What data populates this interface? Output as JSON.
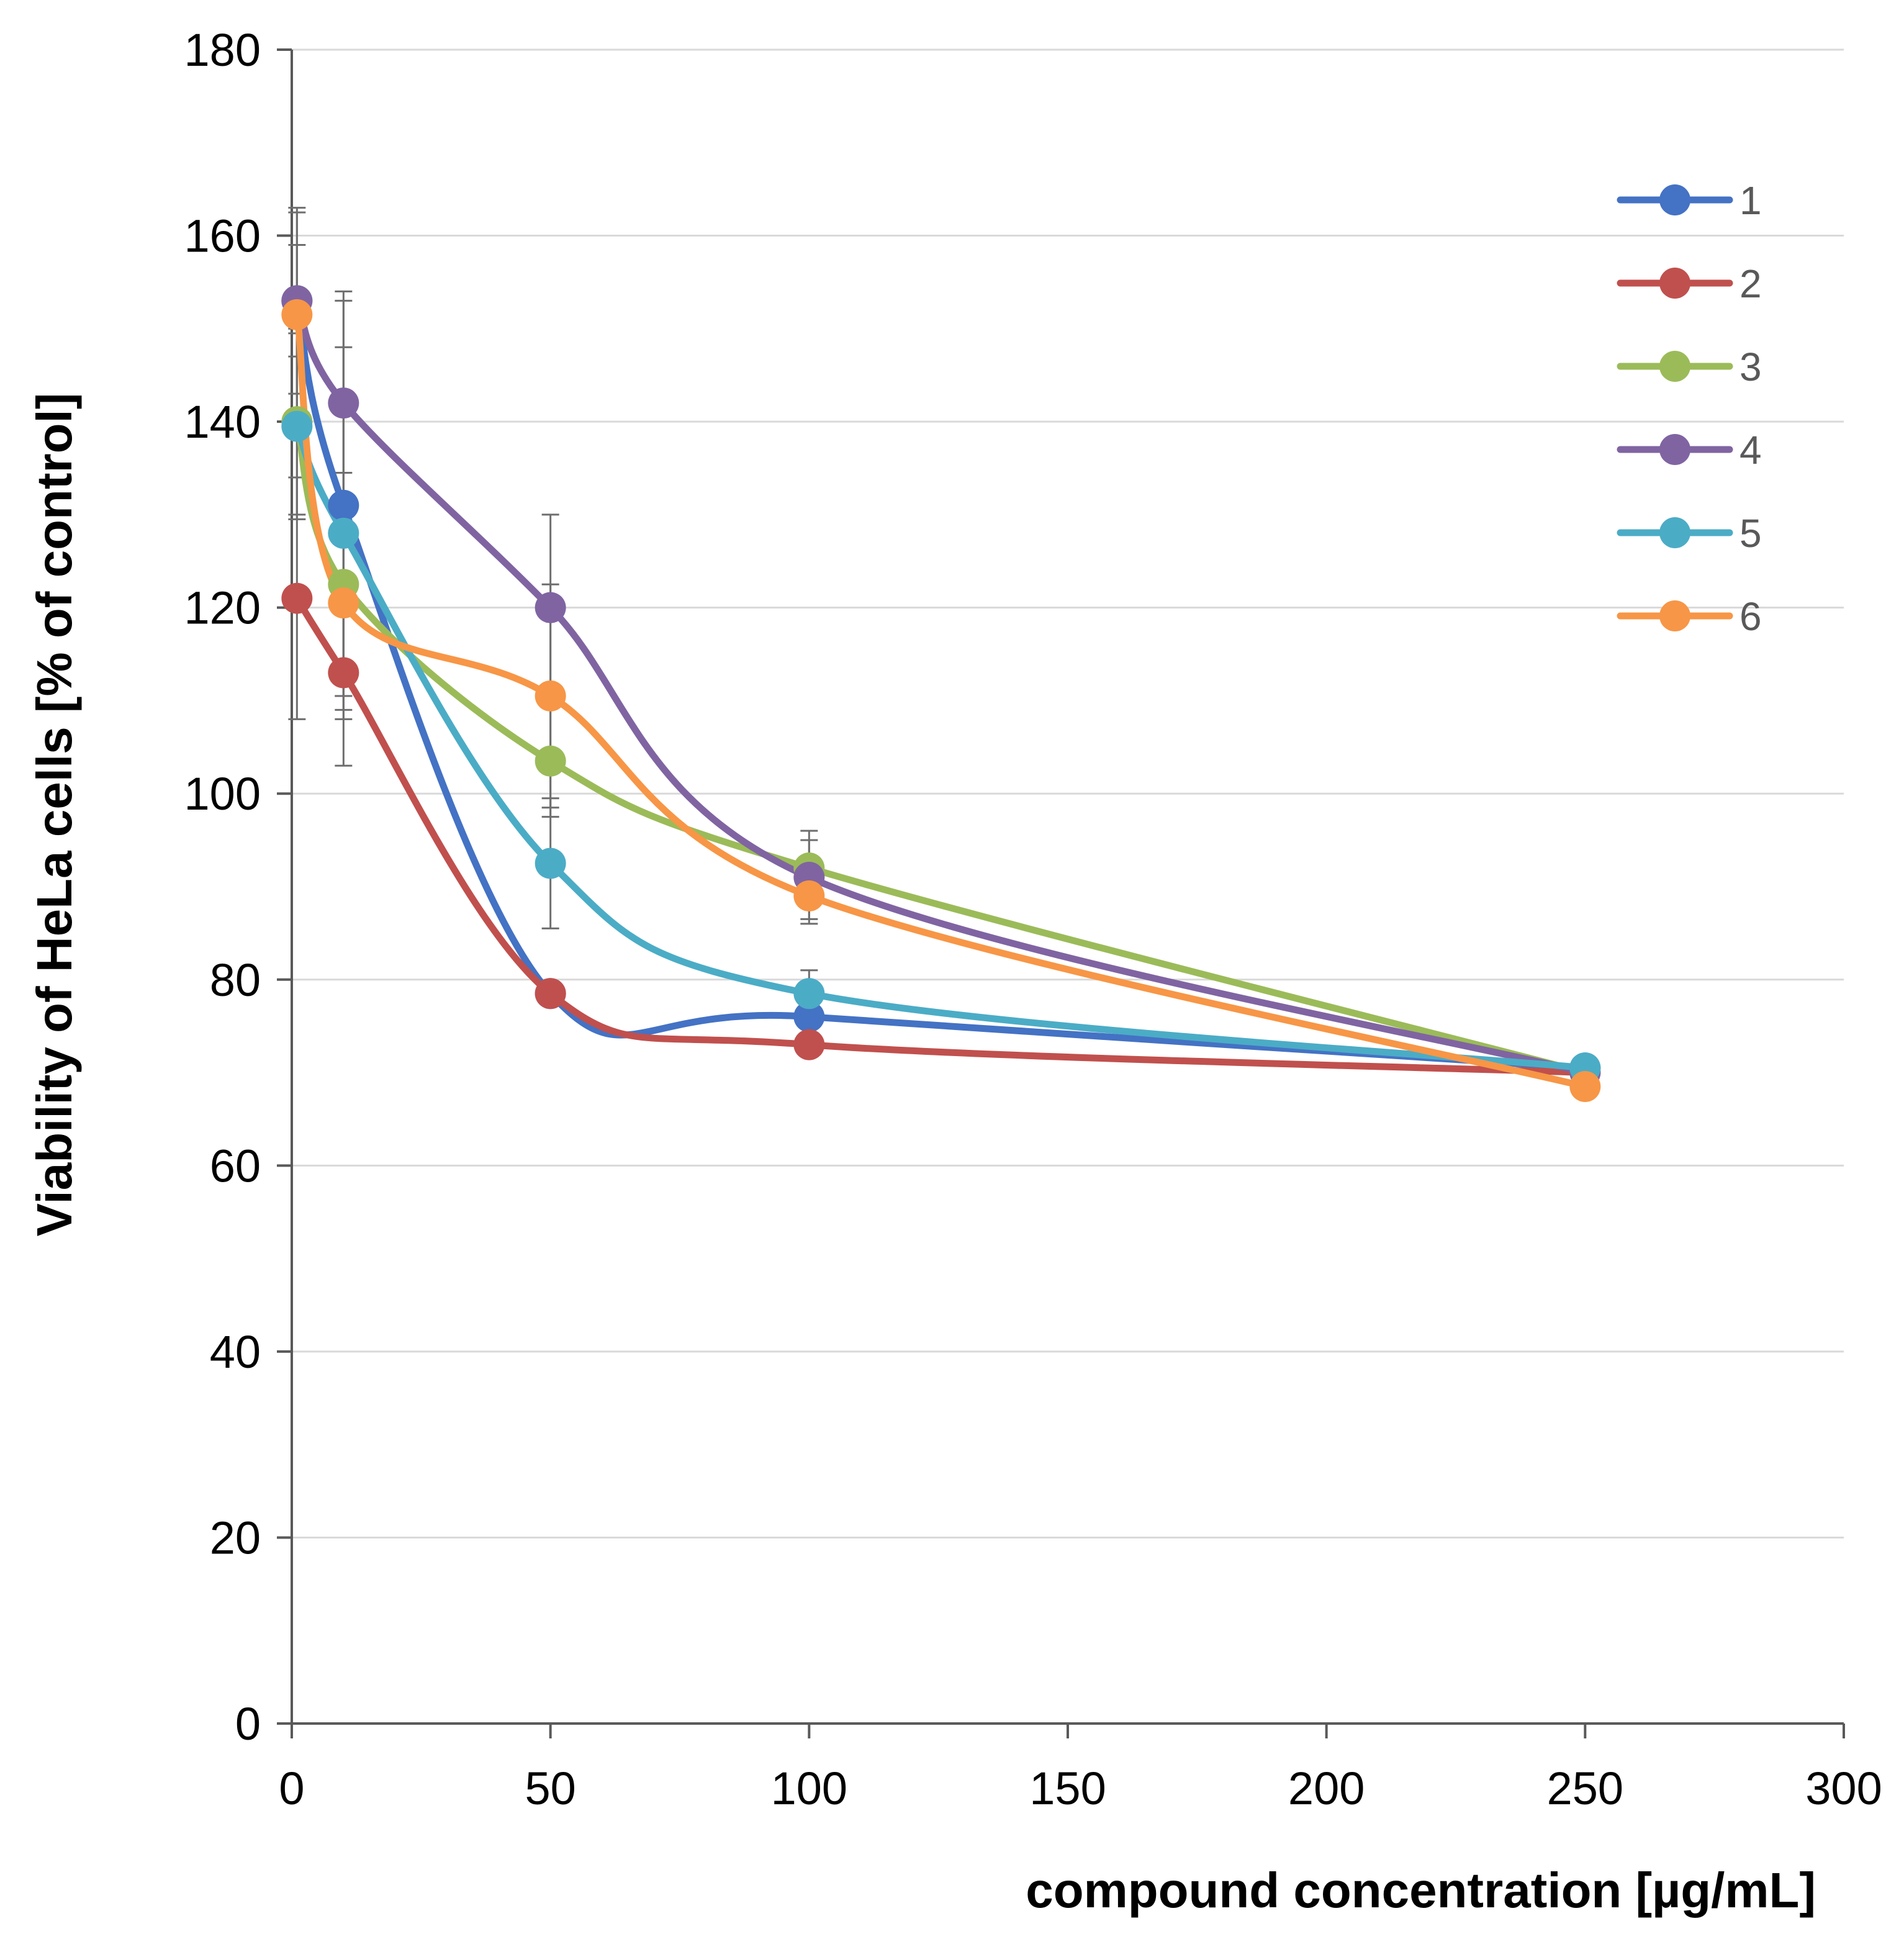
{
  "chart_data": {
    "type": "line",
    "title": "",
    "xlabel": "compound concentration [µg/mL]",
    "ylabel": "Viability of HeLa cells [% of control]",
    "xlim": [
      0,
      300
    ],
    "ylim": [
      0,
      180
    ],
    "xticks": [
      0,
      50,
      100,
      150,
      200,
      250,
      300
    ],
    "yticks": [
      0,
      20,
      40,
      60,
      80,
      100,
      120,
      140,
      160,
      180
    ],
    "grid": "horizontal",
    "legend_position": "top-right",
    "x": [
      1,
      10,
      50,
      100,
      250
    ],
    "series": [
      {
        "name": "1",
        "color": "#4472c4",
        "values": [
          153,
          131,
          78.5,
          76,
          70.5
        ],
        "errors": [
          6,
          22,
          1,
          1,
          1
        ]
      },
      {
        "name": "2",
        "color": "#c0504d",
        "values": [
          121,
          113,
          78.5,
          73,
          70
        ],
        "errors": [
          13,
          10,
          1,
          1,
          1
        ]
      },
      {
        "name": "3",
        "color": "#9bbb59",
        "values": [
          140,
          122.5,
          103.5,
          92,
          70
        ],
        "errors": [
          10,
          12,
          6,
          3,
          1
        ]
      },
      {
        "name": "4",
        "color": "#8064a2",
        "values": [
          153,
          142,
          120,
          91,
          70
        ],
        "errors": [
          10,
          12,
          10,
          5,
          1
        ]
      },
      {
        "name": "5",
        "color": "#4bacc6",
        "values": [
          139.5,
          128,
          92.5,
          78.5,
          70.5
        ],
        "errors": [
          10,
          20,
          7,
          2.5,
          1
        ]
      },
      {
        "name": "6",
        "color": "#f79646",
        "values": [
          151.5,
          120.5,
          110.5,
          89,
          68.5
        ],
        "errors": [
          11,
          10,
          12,
          2.5,
          1
        ]
      }
    ]
  }
}
